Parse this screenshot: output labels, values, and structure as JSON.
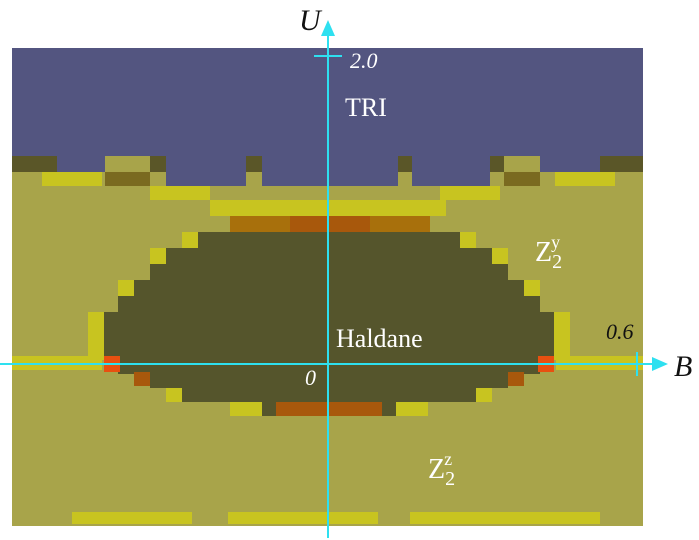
{
  "axes": {
    "x_name": "B",
    "y_name": "U",
    "x_tick": "0.6",
    "y_tick": "2.0",
    "origin": "0"
  },
  "phases": {
    "tri": "TRI",
    "haldane": "Haldane",
    "zy_base": "Z",
    "zy_sub": "2",
    "zy_sup": "y",
    "zz_base": "Z",
    "zz_sub": "2",
    "zz_sup": "z"
  },
  "colors": {
    "tri": "#535580",
    "z2": "#a8a44a",
    "haldane": "#55552c",
    "axis": "#2ee0f0",
    "boundary_yellow": "#c8c820",
    "boundary_orange": "#a8580c",
    "hot": "#e85010"
  }
}
